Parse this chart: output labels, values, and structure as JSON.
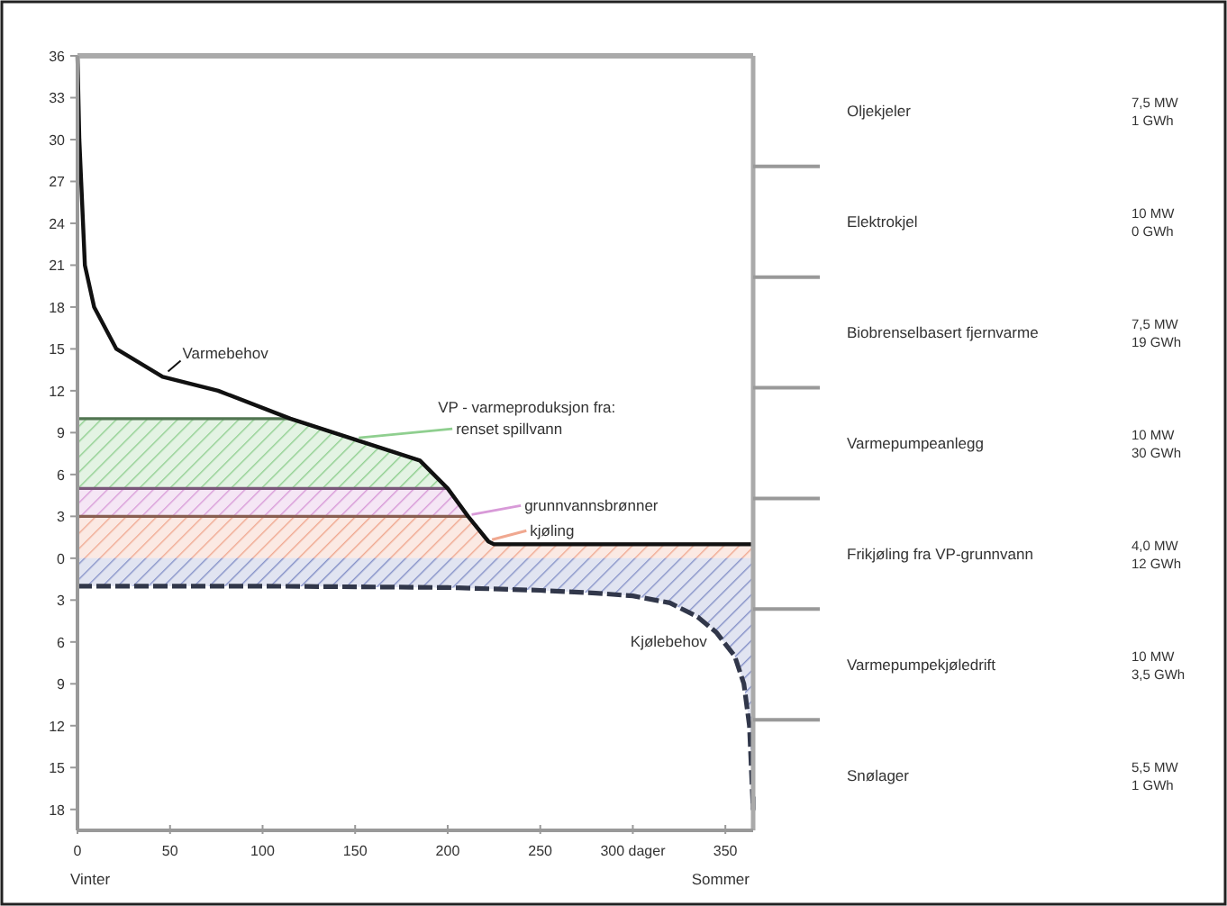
{
  "chart_data": [
    {
      "type": "area",
      "xlabel": "Vinter",
      "annotations": [
        "Sommer"
      ],
      "legend_title": "VP - varmeproduksjon fra:",
      "xlim": [
        0,
        365
      ],
      "xticks": [
        0,
        50,
        100,
        150,
        200,
        250,
        {
          "value": 300,
          "label": "300 dager"
        },
        350
      ],
      "ylim": [
        -19.5,
        36
      ],
      "yticks": [
        {
          "value": -18,
          "label": "18"
        },
        {
          "value": -15,
          "label": "15"
        },
        {
          "value": -12,
          "label": "12"
        },
        {
          "value": -9,
          "label": "9"
        },
        {
          "value": -6,
          "label": "6"
        },
        {
          "value": -3,
          "label": "3"
        },
        0,
        3,
        6,
        9,
        12,
        15,
        18,
        21,
        24,
        27,
        30,
        33,
        36
      ],
      "series": [
        {
          "type": "area",
          "name": "renset spillvann",
          "color": "#8fcf8f",
          "x": [
            0,
            1,
            2,
            3,
            4,
            9,
            21,
            46,
            76,
            115,
            150,
            185,
            200,
            211,
            222,
            225,
            365
          ],
          "values": [
            10,
            10,
            10,
            10,
            10,
            10,
            10,
            10,
            10,
            10,
            8.5,
            7,
            5,
            3,
            1.2,
            1,
            1
          ]
        },
        {
          "type": "area",
          "name": "grunnvannsbrønner",
          "color": "#d89ad8",
          "x": [
            0,
            1,
            2,
            3,
            4,
            9,
            21,
            46,
            76,
            115,
            150,
            185,
            200,
            211,
            222,
            225,
            365
          ],
          "values": [
            5,
            5,
            5,
            5,
            5,
            5,
            5,
            5,
            5,
            5,
            5,
            5,
            5,
            3,
            1.2,
            1,
            1
          ]
        },
        {
          "type": "area",
          "name": "kjøling",
          "color": "#f0a890",
          "x": [
            0,
            1,
            2,
            3,
            4,
            9,
            21,
            46,
            76,
            115,
            150,
            185,
            200,
            211,
            222,
            225,
            365
          ],
          "values": [
            3,
            3,
            3,
            3,
            3,
            3,
            3,
            3,
            3,
            3,
            3,
            3,
            3,
            3,
            1.2,
            1,
            1
          ]
        },
        {
          "type": "area",
          "name": "Kjølebehov",
          "color": "#31374a",
          "line_style": "dashed",
          "x": [
            0,
            100,
            200,
            250,
            280,
            300,
            320,
            335,
            345,
            355,
            360,
            363,
            365
          ],
          "values": [
            -2,
            -2,
            -2.1,
            -2.3,
            -2.5,
            -2.7,
            -3.2,
            -4.2,
            -5.3,
            -7,
            -9,
            -12,
            -18
          ]
        },
        {
          "type": "line",
          "name": "Varmebehov",
          "color": "#111111",
          "line_style": "solid",
          "x": [
            0,
            1,
            2,
            3,
            4,
            9,
            21,
            46,
            76,
            115,
            150,
            185,
            200,
            211,
            222,
            225,
            365
          ],
          "values": [
            36,
            30,
            27,
            24,
            21,
            18,
            15,
            13,
            12,
            10,
            8.5,
            7,
            5,
            3,
            1.2,
            1,
            1
          ]
        }
      ]
    },
    {
      "type": "other",
      "annotations": [
        "Oljekjeler",
        "7,5 MW\n1 GWh",
        "Elektrokjel",
        "10 MW\n0 GWh",
        "Biobrenselbasert fjernvarme",
        "7,5 MW\n19 GWh",
        "Varmepumpeanlegg",
        "10 MW\n30 GWh",
        "Frikjøling fra VP-grunnvann",
        "4,0 MW\n12 GWh",
        "Varmepumpekjøledrift",
        "10 MW\n3,5 GWh",
        "Snølager",
        "5,5 MW\n1 GWh"
      ]
    }
  ]
}
